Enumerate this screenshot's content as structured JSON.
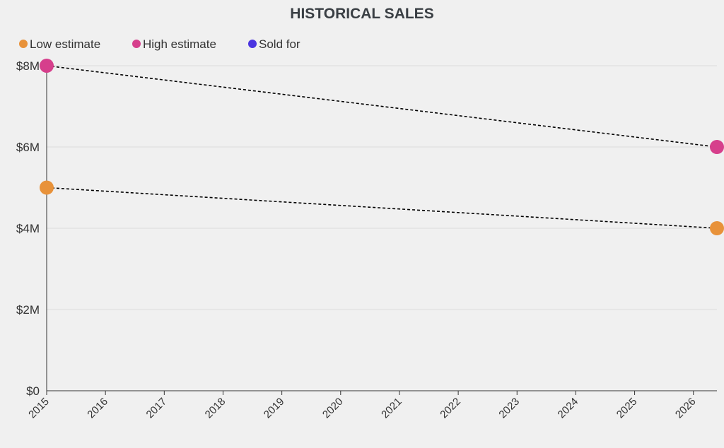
{
  "chart_data": {
    "type": "line",
    "title": "HISTORICAL SALES",
    "xlabel": "",
    "ylabel": "",
    "x_tick_labels": [
      "2015",
      "2016",
      "2017",
      "2018",
      "2019",
      "2020",
      "2021",
      "2022",
      "2023",
      "2024",
      "2025",
      "2026"
    ],
    "x_range": [
      2015,
      2026.4
    ],
    "y_tick_labels": [
      "$0",
      "$2M",
      "$4M",
      "$6M",
      "$8M"
    ],
    "y_tick_values": [
      0,
      2,
      4,
      6,
      8
    ],
    "ylim": [
      0,
      8
    ],
    "y_units": "millions USD",
    "legend_position": "top-left",
    "series": [
      {
        "name": "Low estimate",
        "color": "#e8923a",
        "points": [
          {
            "x": 2015.0,
            "y": 5
          },
          {
            "x": 2026.4,
            "y": 4
          }
        ]
      },
      {
        "name": "High estimate",
        "color": "#d63f8c",
        "points": [
          {
            "x": 2015.0,
            "y": 8
          },
          {
            "x": 2026.4,
            "y": 6
          }
        ]
      },
      {
        "name": "Sold for",
        "color": "#4b35e0",
        "points": []
      }
    ]
  }
}
